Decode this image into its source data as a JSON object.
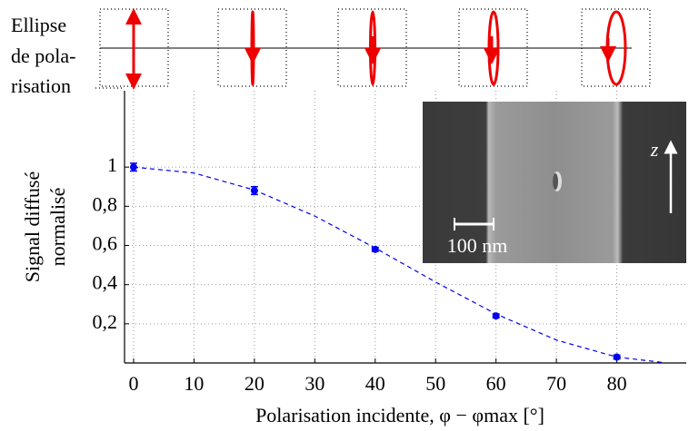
{
  "chart_data": {
    "type": "scatter",
    "annotation_label": [
      "Ellipse",
      "de pola-",
      "risation"
    ],
    "x_label": "Polarisation incidente, φ − φmax [°]",
    "y_label": [
      "Signal diffusé",
      "normalisé"
    ],
    "x": [
      0,
      20,
      40,
      60,
      80
    ],
    "values": [
      1.0,
      0.88,
      0.58,
      0.24,
      0.03
    ],
    "errors": [
      0.02,
      0.02,
      0.01,
      0.01,
      0.01
    ],
    "color": "#0000ee",
    "fit": {
      "x": [
        0,
        10,
        20,
        30,
        40,
        50,
        60,
        70,
        80,
        88
      ],
      "values": [
        1.0,
        0.97,
        0.883,
        0.75,
        0.587,
        0.413,
        0.25,
        0.117,
        0.03,
        0.001
      ],
      "color": "#0000ee"
    },
    "xlim": [
      -1.5,
      91.5
    ],
    "ylim": [
      0,
      1.39
    ],
    "xticks": [
      0,
      10,
      20,
      30,
      40,
      50,
      60,
      70,
      80
    ],
    "yticks": [
      {
        "value": 0.2,
        "label": "0,2"
      },
      {
        "value": 0.4,
        "label": "0,4"
      },
      {
        "value": 0.6,
        "label": "0,6"
      },
      {
        "value": 0.8,
        "label": "0,8"
      },
      1
    ],
    "grid": true,
    "inset": {
      "scale_bar": "100 nm",
      "axis": "z"
    }
  }
}
